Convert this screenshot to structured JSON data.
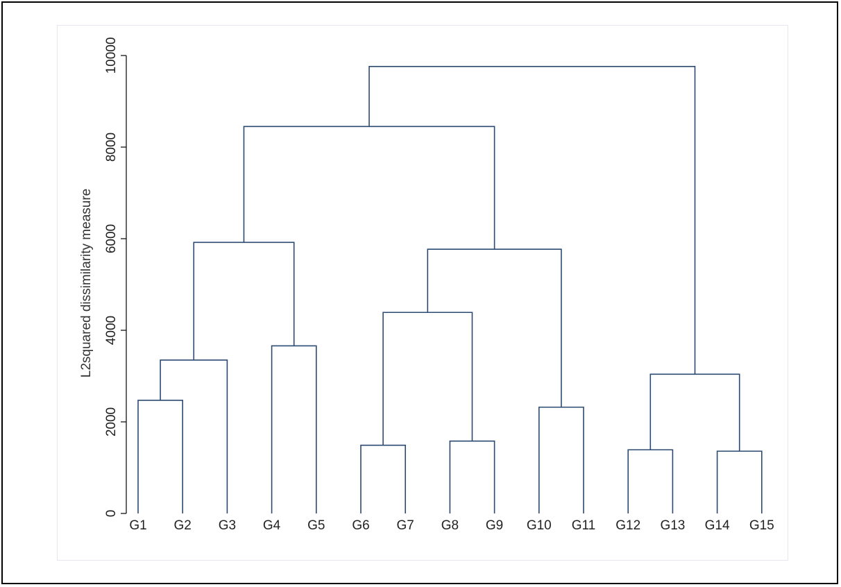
{
  "chart_data": {
    "type": "dendrogram",
    "ylabel": "L2squared dissimilarity measure",
    "ylim": [
      0,
      10000
    ],
    "yticks": [
      0,
      2000,
      4000,
      6000,
      8000,
      10000
    ],
    "leaves": [
      "G1",
      "G2",
      "G3",
      "G4",
      "G5",
      "G6",
      "G7",
      "G8",
      "G9",
      "G10",
      "G11",
      "G12",
      "G13",
      "G14",
      "G15"
    ],
    "merges": [
      {
        "id": "m1",
        "left": "G1",
        "right": "G2",
        "height": 2470
      },
      {
        "id": "m2",
        "left": "m1",
        "right": "G3",
        "height": 3350
      },
      {
        "id": "m3",
        "left": "G4",
        "right": "G5",
        "height": 3660
      },
      {
        "id": "m4",
        "left": "m2",
        "right": "m3",
        "height": 5920
      },
      {
        "id": "m5",
        "left": "G6",
        "right": "G7",
        "height": 1490
      },
      {
        "id": "m6",
        "left": "G8",
        "right": "G9",
        "height": 1580
      },
      {
        "id": "m7",
        "left": "m5",
        "right": "m6",
        "height": 4390
      },
      {
        "id": "m8",
        "left": "G10",
        "right": "G11",
        "height": 2320
      },
      {
        "id": "m9",
        "left": "m7",
        "right": "m8",
        "height": 5770
      },
      {
        "id": "m10",
        "left": "m4",
        "right": "m9",
        "height": 8450
      },
      {
        "id": "m11",
        "left": "G12",
        "right": "G13",
        "height": 1390
      },
      {
        "id": "m12",
        "left": "G14",
        "right": "G15",
        "height": 1360
      },
      {
        "id": "m13",
        "left": "m11",
        "right": "m12",
        "height": 3040
      },
      {
        "id": "m14",
        "left": "m10",
        "right": "m13",
        "height": 9760
      }
    ],
    "line_color": "#2b4a72",
    "grid": false
  }
}
